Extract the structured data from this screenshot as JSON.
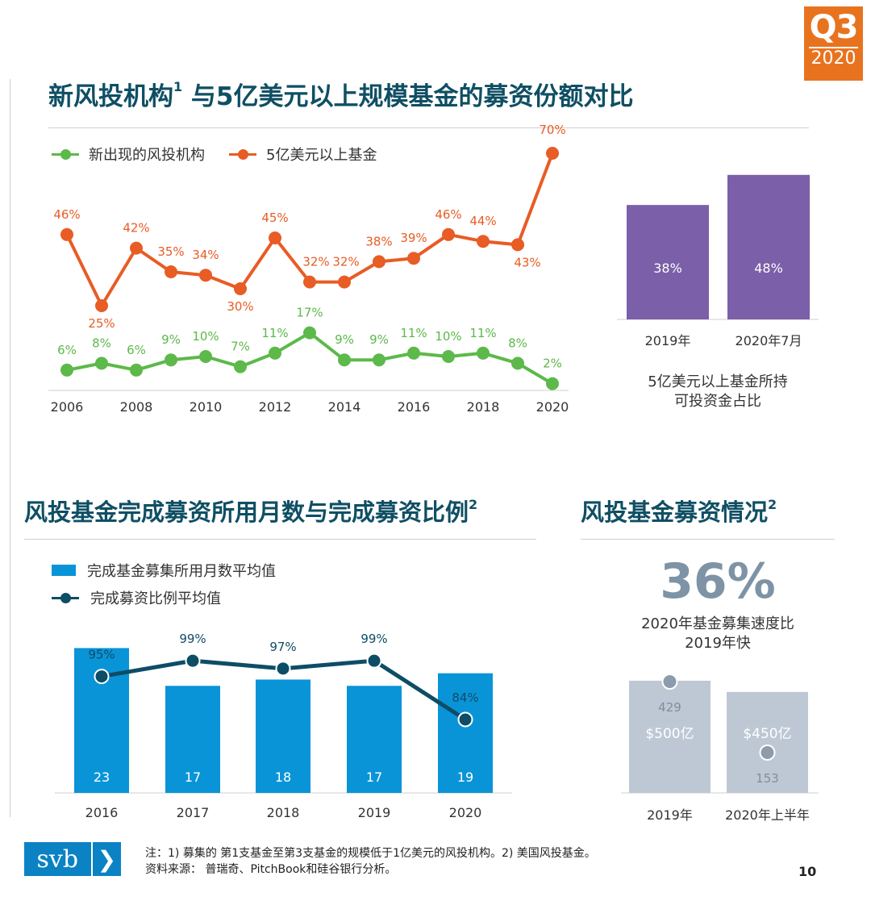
{
  "badge": {
    "quarter": "Q3",
    "year": "2020"
  },
  "section1": {
    "title": "新风投机构",
    "title_sup": "1",
    "title_rest": " 与5亿美元以上规模基金的募资份额对比"
  },
  "section2": {
    "title": "风投基金完成募资所用月数与完成募资比例",
    "title_sup": "2"
  },
  "section3": {
    "title": "风投基金募资情况",
    "title_sup": "2"
  },
  "colors": {
    "green": "#5cb94a",
    "orange": "#e85c25",
    "purple": "#7b5fa8",
    "blue": "#0a94d8",
    "navy": "#0d4d66",
    "gray": "#bec8d4",
    "gray_marker": "#8c9cac"
  },
  "chart_data": [
    {
      "id": "line_share",
      "type": "line",
      "title": "新风投机构与5亿美元以上规模基金的募资份额对比",
      "x": [
        2006,
        2007,
        2008,
        2009,
        2010,
        2011,
        2012,
        2013,
        2014,
        2015,
        2016,
        2017,
        2018,
        2019,
        2020
      ],
      "xticks": [
        "2006",
        "2008",
        "2010",
        "2012",
        "2014",
        "2016",
        "2018",
        "2020"
      ],
      "ylim": [
        0,
        75
      ],
      "series": [
        {
          "name": "新出现的风投机构",
          "color": "#5cb94a",
          "values": [
            6,
            8,
            6,
            9,
            10,
            7,
            11,
            17,
            9,
            9,
            11,
            10,
            11,
            8,
            2
          ],
          "labels": [
            "6%",
            "8%",
            "6%",
            "9%",
            "10%",
            "7%",
            "11%",
            "17%",
            "9%",
            "9%",
            "11%",
            "10%",
            "11%",
            "8%",
            "2%"
          ]
        },
        {
          "name": "5亿美元以上基金",
          "color": "#e85c25",
          "values": [
            46,
            25,
            42,
            35,
            34,
            30,
            45,
            32,
            32,
            38,
            39,
            46,
            44,
            43,
            70
          ],
          "labels": [
            "46%",
            "25%",
            "42%",
            "35%",
            "34%",
            "30%",
            "45%",
            "32%",
            "32%",
            "38%",
            "39%",
            "46%",
            "44%",
            "43%",
            "70%"
          ]
        }
      ]
    },
    {
      "id": "bar_dry_powder",
      "type": "bar",
      "categories": [
        "2019年",
        "2020年7月"
      ],
      "values": [
        38,
        48
      ],
      "labels": [
        "38%",
        "48%"
      ],
      "ylim": [
        0,
        60
      ],
      "caption": [
        "5亿美元以上基金所持",
        "可投资金占比"
      ]
    },
    {
      "id": "combo_months",
      "type": "bar",
      "categories": [
        "2016",
        "2017",
        "2018",
        "2019",
        "2020"
      ],
      "series": [
        {
          "name": "完成基金募集所用月数平均值",
          "kind": "bar",
          "values": [
            23,
            17,
            18,
            17,
            19
          ],
          "labels": [
            "23",
            "17",
            "18",
            "17",
            "19"
          ]
        },
        {
          "name": "完成募资比例平均值",
          "kind": "line",
          "values": [
            95,
            99,
            97,
            99,
            84
          ],
          "labels": [
            "95%",
            "99%",
            "97%",
            "99%",
            "84%"
          ]
        }
      ],
      "ylim_bar": [
        0,
        26
      ],
      "ylim_line": [
        70,
        105
      ]
    },
    {
      "id": "fundraising",
      "type": "bar",
      "headline": "36%",
      "headline_caption": [
        "2020年基金募集速度比",
        "2019年快"
      ],
      "categories": [
        "2019年",
        "2020年上半年"
      ],
      "amounts": [
        500,
        450
      ],
      "amount_labels": [
        "$500亿",
        "$450亿"
      ],
      "fund_counts": [
        429,
        153
      ],
      "fund_count_labels": [
        "429",
        "153"
      ],
      "ylim": [
        0,
        550
      ]
    }
  ],
  "footer": {
    "note": "注：1) 募集的 第1支基金至第3支基金的规模低于1亿美元的风投机构。2) 美国风投基金。",
    "source": "资料来源： 普瑞奇、PitchBook和硅谷银行分析。",
    "page": "10",
    "logo_text": "svb",
    "logo_arrow": "❯"
  }
}
